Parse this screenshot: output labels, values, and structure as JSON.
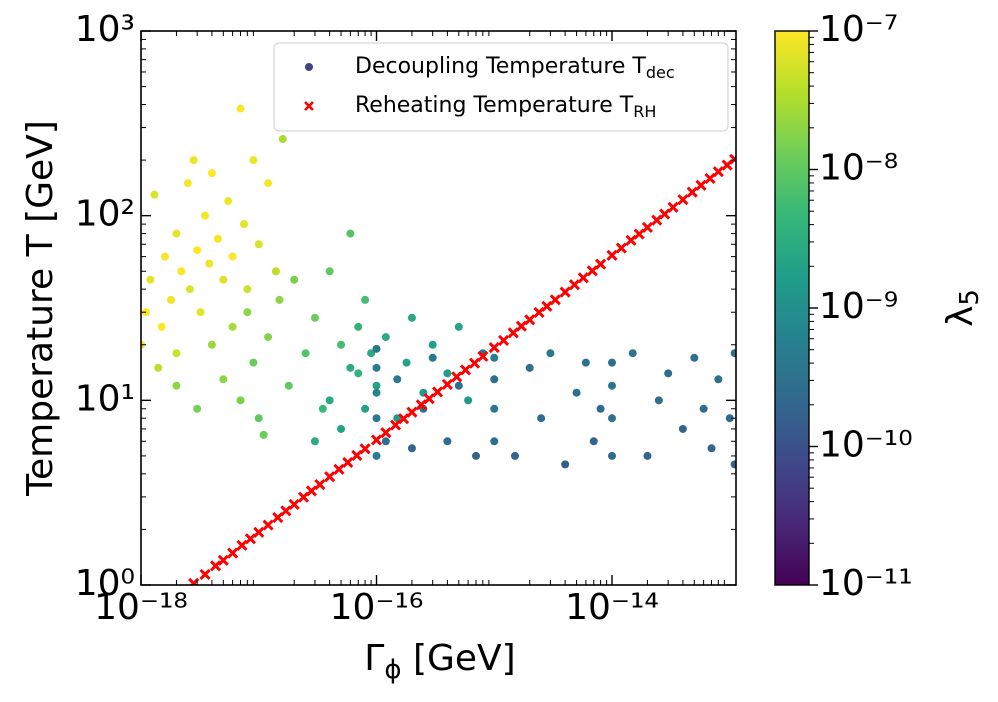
{
  "chart_data": {
    "type": "scatter",
    "x_label": {
      "text": "Γ",
      "sub": "ϕ",
      "unit": " [GeV]"
    },
    "y_label": "Temperature T [GeV]",
    "colorbar_label": {
      "text": "λ",
      "sub": "5"
    },
    "log_x": true,
    "log_y": true,
    "colormap": "viridis",
    "xlim": [
      1e-18,
      1.13e-13
    ],
    "ylim": [
      1,
      1000
    ],
    "xticks": [
      {
        "value": 1e-18,
        "label": "10⁻¹⁸"
      },
      {
        "value": 1e-16,
        "label": "10⁻¹⁶"
      },
      {
        "value": 1e-14,
        "label": "10⁻¹⁴"
      }
    ],
    "yticks": [
      {
        "value": 1,
        "label": "10⁰"
      },
      {
        "value": 10,
        "label": "10¹"
      },
      {
        "value": 100,
        "label": "10²"
      },
      {
        "value": 1000,
        "label": "10³"
      }
    ],
    "clim": [
      1e-11,
      1e-07
    ],
    "cticks": [
      {
        "value": 1e-11,
        "label": "10⁻¹¹"
      },
      {
        "value": 1e-10,
        "label": "10⁻¹⁰"
      },
      {
        "value": 1e-09,
        "label": "10⁻⁹"
      },
      {
        "value": 1e-08,
        "label": "10⁻⁸"
      },
      {
        "value": 1e-07,
        "label": "10⁻⁷"
      }
    ],
    "legend": "upper right",
    "series": [
      {
        "name": "Decoupling Temperature T",
        "name_sub": "dec",
        "marker": "circle",
        "x": [
          1e-18,
          1.1e-18,
          1.2e-18,
          1.3e-18,
          1.5e-18,
          1.6e-18,
          1.8e-18,
          2e-18,
          2.2e-18,
          2.5e-18,
          2.6e-18,
          2.8e-18,
          3e-18,
          3.2e-18,
          3.5e-18,
          3.8e-18,
          4e-18,
          4.5e-18,
          5e-18,
          5.5e-18,
          6e-18,
          7e-18,
          7.5e-18,
          8e-18,
          9e-18,
          1e-17,
          1.2e-17,
          1.4e-17,
          1.6e-17,
          2e-18,
          1.4e-18,
          2e-18,
          3e-18,
          4e-18,
          5e-18,
          6e-18,
          7e-18,
          8e-18,
          9e-18,
          1e-17,
          1.2e-17,
          1.5e-17,
          1.8e-17,
          2e-17,
          2.5e-17,
          3e-17,
          3.5e-17,
          4e-17,
          5e-17,
          6e-17,
          7e-17,
          8e-17,
          1.1e-17,
          3e-17,
          4e-17,
          5e-17,
          6e-17,
          7e-17,
          8e-17,
          9e-17,
          1e-16,
          1.2e-16,
          1.5e-16,
          1.8e-16,
          2e-16,
          2.5e-16,
          3e-16,
          4e-16,
          5e-16,
          6e-16,
          1e-16,
          1e-16,
          1e-16,
          1e-16,
          1e-16,
          1.2e-16,
          1.5e-16,
          2e-16,
          2.5e-16,
          3e-16,
          4e-16,
          5e-16,
          7e-16,
          8e-16,
          1e-15,
          1e-15,
          1e-15,
          1e-15,
          1.5e-15,
          2e-15,
          2.5e-15,
          3e-15,
          4e-15,
          5e-15,
          6e-15,
          7e-15,
          8e-15,
          1e-14,
          1e-14,
          1e-14,
          1e-14,
          1.5e-14,
          2e-14,
          2.5e-14,
          3e-14,
          4e-14,
          5e-14,
          6e-14,
          7e-14,
          8e-14,
          1e-13,
          1.1e-13,
          1.1e-13
        ],
        "values": [
          20,
          30,
          45,
          130,
          25,
          60,
          35,
          80,
          50,
          150,
          40,
          200,
          65,
          30,
          100,
          55,
          170,
          75,
          45,
          120,
          60,
          380,
          90,
          40,
          200,
          70,
          150,
          50,
          260,
          18,
          15,
          12,
          9,
          20,
          13,
          25,
          10,
          30,
          16,
          8,
          22,
          35,
          12,
          45,
          18,
          28,
          9,
          50,
          20,
          80,
          14,
          35,
          6.5,
          6,
          10,
          7,
          15,
          25,
          9,
          18,
          12,
          22,
          8,
          16,
          28,
          11,
          20,
          14,
          25,
          10,
          5,
          8,
          11,
          15,
          19,
          6,
          13,
          5.5,
          9,
          17,
          6,
          12,
          5,
          18,
          6,
          9,
          13,
          17,
          5,
          15,
          8,
          18,
          4.5,
          11,
          16,
          6,
          9,
          5,
          8,
          12,
          16,
          18,
          5,
          10,
          14,
          7,
          17,
          9,
          5.5,
          13,
          8,
          4.5,
          18
        ],
        "lambda": [
          8e-08,
          9e-08,
          7e-08,
          6e-08,
          1e-07,
          9e-08,
          8e-08,
          7e-08,
          1e-07,
          9e-08,
          6e-08,
          8e-08,
          1e-07,
          7e-08,
          9e-08,
          8e-08,
          1e-07,
          9e-08,
          6e-08,
          8e-08,
          1e-07,
          9e-08,
          7e-08,
          5e-08,
          8e-08,
          6e-08,
          9e-08,
          4e-08,
          3e-08,
          5e-08,
          4e-08,
          2e-08,
          1.5e-08,
          2.5e-08,
          2e-08,
          3e-08,
          1.5e-08,
          2e-08,
          1.2e-08,
          1e-08,
          1.8e-08,
          2e-08,
          1e-08,
          1.5e-08,
          8e-09,
          1.2e-08,
          5e-09,
          1e-08,
          6e-09,
          8e-09,
          4e-09,
          6e-09,
          1.2e-08,
          3e-09,
          2.5e-09,
          2e-09,
          3e-09,
          4e-09,
          2e-09,
          2.5e-09,
          2e-09,
          3e-09,
          1.5e-09,
          2e-09,
          2.5e-09,
          1.5e-09,
          2e-09,
          1.8e-09,
          2.2e-09,
          1.5e-09,
          5e-10,
          4e-10,
          6e-10,
          5e-10,
          4e-10,
          3e-10,
          4e-10,
          2e-10,
          3e-10,
          4e-10,
          2.5e-10,
          3e-10,
          2e-10,
          4e-10,
          3e-10,
          4e-10,
          3e-10,
          5e-10,
          2e-10,
          3e-10,
          2.5e-10,
          4e-10,
          1.5e-10,
          3e-10,
          3.5e-10,
          2e-10,
          2.5e-10,
          2.5e-10,
          3e-10,
          4e-10,
          3e-10,
          3.5e-10,
          2e-10,
          3e-10,
          2.5e-10,
          2e-10,
          3e-10,
          2.5e-10,
          2e-10,
          3e-10,
          2.5e-10,
          2e-10,
          3e-10
        ]
      },
      {
        "name": "Reheating Temperature T",
        "name_sub": "RH",
        "marker": "x",
        "color": "#ff0000",
        "x": [
          2.8e-18,
          3.5e-18,
          4.3e-18,
          5e-18,
          6e-18,
          7.2e-18,
          8.5e-18,
          1e-17,
          1.2e-17,
          1.45e-17,
          1.7e-17,
          2e-17,
          2.4e-17,
          2.8e-17,
          3.3e-17,
          4e-17,
          4.8e-17,
          5.7e-17,
          6.8e-17,
          8e-17,
          1e-16,
          1.2e-16,
          1.45e-16,
          1.7e-16,
          2e-16,
          2.4e-16,
          2.8e-16,
          3.3e-16,
          4e-16,
          4.8e-16,
          5.7e-16,
          6.8e-16,
          8e-16,
          1e-15,
          1.2e-15,
          1.45e-15,
          1.7e-15,
          2e-15,
          2.4e-15,
          2.8e-15,
          3.3e-15,
          4e-15,
          4.8e-15,
          5.7e-15,
          6.8e-15,
          8e-15,
          1e-14,
          1.2e-14,
          1.45e-14,
          1.7e-14,
          2e-14,
          2.4e-14,
          2.8e-14,
          3.3e-14,
          4e-14,
          4.8e-14,
          5.7e-14,
          6.8e-14,
          8e-14,
          9.5e-14,
          1.1e-13
        ],
        "values": [
          1.02,
          1.14,
          1.27,
          1.36,
          1.49,
          1.64,
          1.78,
          1.93,
          2.11,
          2.32,
          2.52,
          2.73,
          2.99,
          3.23,
          3.5,
          3.86,
          4.23,
          4.61,
          5.03,
          5.46,
          6.1,
          6.68,
          7.35,
          7.95,
          8.63,
          9.45,
          10.2,
          11.1,
          12.2,
          13.4,
          14.6,
          15.9,
          17.3,
          19.3,
          21.1,
          23.2,
          25.2,
          27.3,
          29.9,
          32.3,
          35,
          38.6,
          42.3,
          46.1,
          50.3,
          54.6,
          61,
          66.8,
          73.5,
          79.5,
          86.3,
          94.5,
          102,
          111,
          122,
          134,
          146,
          159,
          173,
          188,
          202
        ]
      }
    ]
  }
}
